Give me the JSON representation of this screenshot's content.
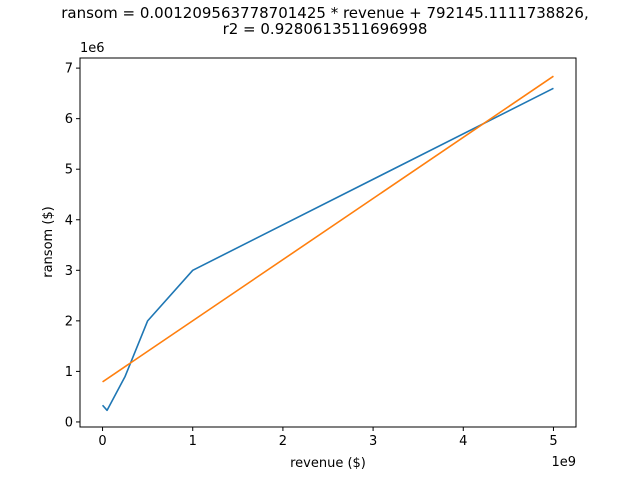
{
  "chart_data": {
    "type": "line",
    "title_lines": [
      "ransom = 0.001209563778701425 * revenue + 792145.1111738826,",
      "r2 = 0.9280613511696998"
    ],
    "xlabel": "revenue ($)",
    "ylabel": "ransom ($)",
    "x_offset_label": "1e9",
    "y_offset_label": "1e6",
    "x_scale": 1000000000.0,
    "y_scale": 1000000.0,
    "xlim": [
      -250000000,
      5250000000
    ],
    "ylim": [
      -100000,
      7200000
    ],
    "x_ticks": [
      {
        "value": 0,
        "label": "0"
      },
      {
        "value": 1000000000,
        "label": "1"
      },
      {
        "value": 2000000000,
        "label": "2"
      },
      {
        "value": 3000000000,
        "label": "3"
      },
      {
        "value": 4000000000,
        "label": "4"
      },
      {
        "value": 5000000000,
        "label": "5"
      }
    ],
    "y_ticks": [
      {
        "value": 0,
        "label": "0"
      },
      {
        "value": 1000000,
        "label": "1"
      },
      {
        "value": 2000000,
        "label": "2"
      },
      {
        "value": 3000000,
        "label": "3"
      },
      {
        "value": 4000000,
        "label": "4"
      },
      {
        "value": 5000000,
        "label": "5"
      },
      {
        "value": 6000000,
        "label": "6"
      },
      {
        "value": 7000000,
        "label": "7"
      }
    ],
    "grid": false,
    "series": [
      {
        "color": "#1f77b4",
        "x": [
          0,
          50000000,
          250000000,
          500000000,
          1000000000,
          5000000000
        ],
        "y": [
          330000,
          230000,
          900000,
          2000000,
          3000000,
          6600000
        ]
      },
      {
        "color": "#ff7f0e",
        "x": [
          0,
          5000000000
        ],
        "y": [
          792145.1111738826,
          6839963.904681007
        ]
      }
    ]
  }
}
